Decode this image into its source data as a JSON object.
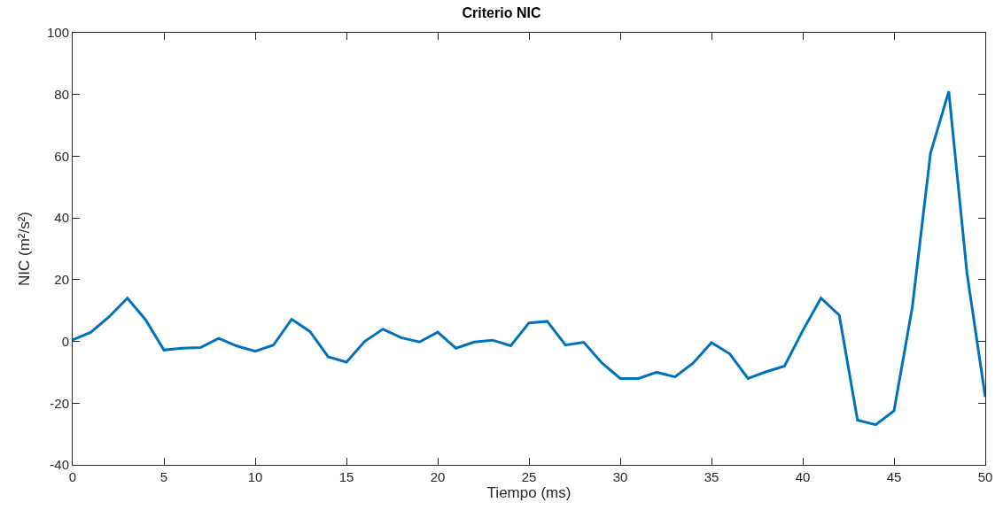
{
  "chart_data": {
    "type": "line",
    "title": "Criterio NIC",
    "xlabel": "Tiempo (ms)",
    "ylabel": "NIC (m²/s²)",
    "x": [
      0,
      1,
      2,
      3,
      4,
      5,
      6,
      7,
      8,
      9,
      10,
      11,
      12,
      13,
      14,
      15,
      16,
      17,
      18,
      19,
      20,
      21,
      22,
      23,
      24,
      25,
      26,
      27,
      28,
      29,
      30,
      31,
      32,
      33,
      34,
      35,
      36,
      37,
      38,
      39,
      40,
      41,
      42,
      43,
      44,
      45,
      46,
      47,
      48,
      49,
      50
    ],
    "series": [
      {
        "color": "#0072bd",
        "values": [
          0.5,
          3,
          8,
          14,
          7,
          -2.8,
          -2.2,
          -2,
          1,
          -1.5,
          -3.2,
          -1.2,
          7.2,
          3.2,
          -5,
          -6.7,
          0,
          4,
          1.2,
          -0.2,
          3,
          -2.2,
          -0.2,
          0.4,
          -1.4,
          6,
          6.5,
          -1.2,
          -0.3,
          -7,
          -12,
          -12,
          -10,
          -11.5,
          -7,
          -0.4,
          -4,
          -12,
          -9.8,
          -8,
          3.5,
          14,
          8.5,
          -25.5,
          -27,
          -22.5,
          11,
          61,
          81,
          22,
          -18
        ]
      }
    ],
    "xlim": [
      0,
      50
    ],
    "xticks": [
      0,
      5,
      10,
      15,
      20,
      25,
      30,
      35,
      40,
      45,
      50
    ],
    "ylim": [
      -40,
      100
    ],
    "yticks": [
      -40,
      -20,
      0,
      20,
      40,
      60,
      80,
      100
    ],
    "marker": "none",
    "line_style": "solid"
  }
}
